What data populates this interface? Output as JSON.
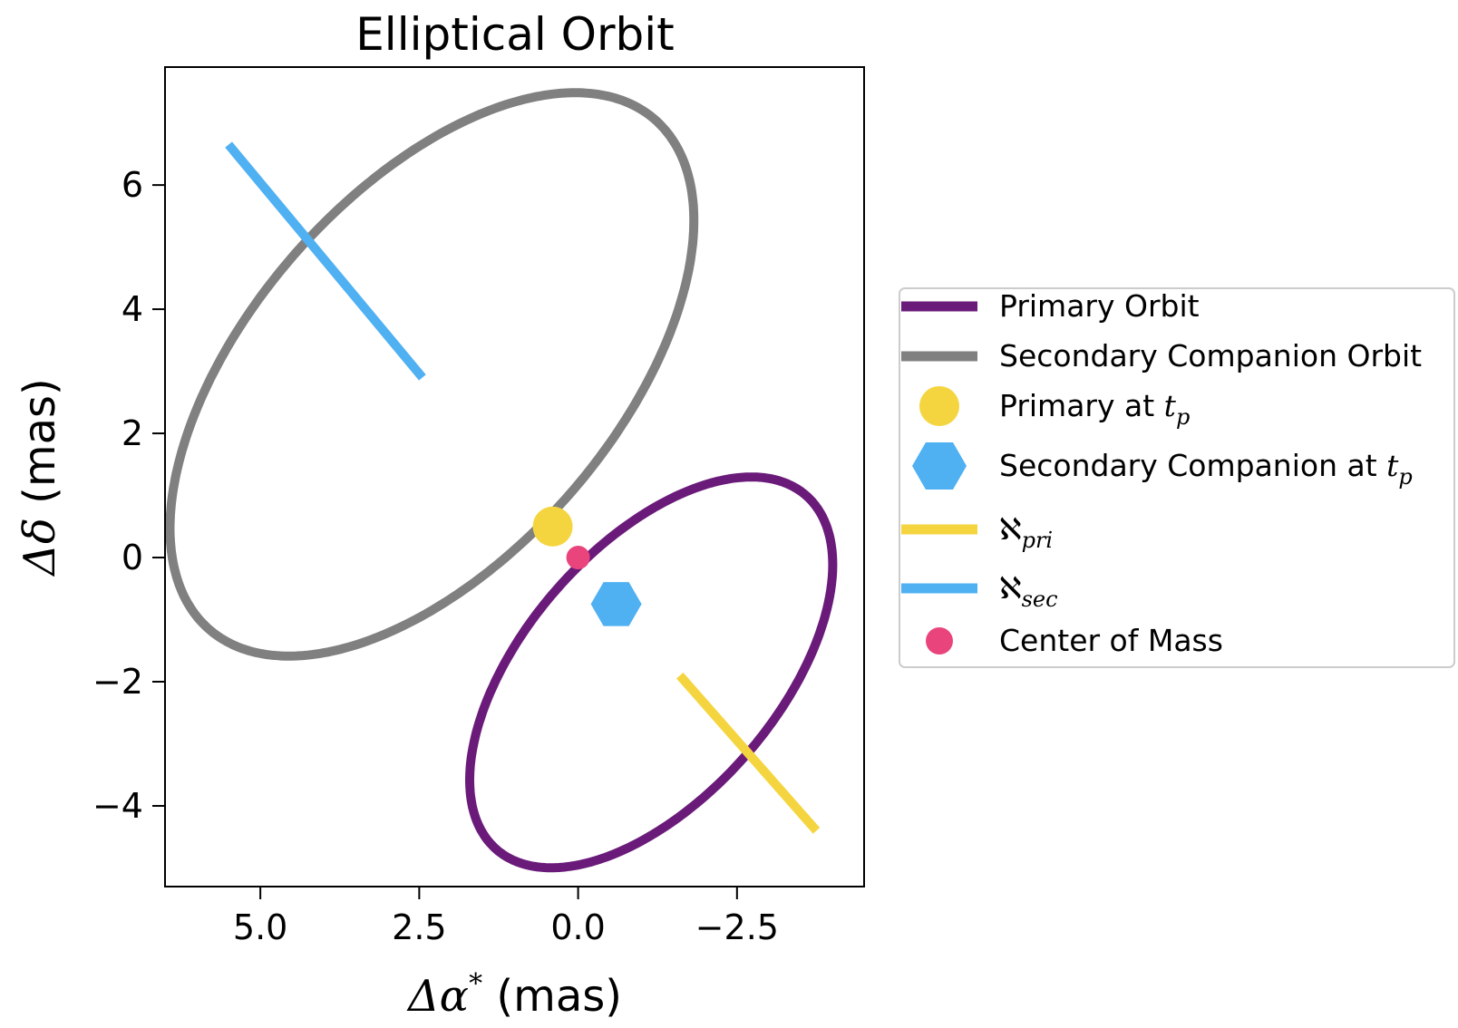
{
  "chart_data": {
    "type": "line",
    "title": "Elliptical Orbit",
    "xlabel_main": "Δα",
    "xlabel_sup": "*",
    "xlabel_unit": " (mas)",
    "ylabel_main": "Δδ",
    "ylabel_unit": " (mas)",
    "xlim": [
      6.5,
      -4.5
    ],
    "ylim": [
      -5.3,
      7.9
    ],
    "x_ticks": [
      5.0,
      2.5,
      0.0,
      -2.5
    ],
    "x_tick_labels": [
      "5.0",
      "2.5",
      "0.0",
      "−2.5"
    ],
    "y_ticks": [
      6,
      4,
      2,
      0,
      -2,
      -4
    ],
    "y_tick_labels": [
      "6",
      "4",
      "2",
      "0",
      "−2",
      "−4"
    ],
    "series": [
      {
        "name": "Primary Orbit",
        "color": "#6a1b7a",
        "ellipse": {
          "center": [
            -1.15,
            -1.85
          ],
          "semi_major": 3.75,
          "semi_minor": 2.0,
          "angle_deg": -50
        }
      },
      {
        "name": "Secondary Companion Orbit",
        "color": "#808080",
        "ellipse": {
          "center": [
            2.3,
            2.95
          ],
          "semi_major": 5.4,
          "semi_minor": 2.9,
          "angle_deg": -50
        }
      }
    ],
    "markers": [
      {
        "name": "Primary at t_p",
        "x": 0.4,
        "y": 0.5,
        "shape": "circle",
        "color": "#f5d53f"
      },
      {
        "name": "Secondary Companion at t_p",
        "x": -0.6,
        "y": -0.75,
        "shape": "hexagon",
        "color": "#4fb0f2"
      },
      {
        "name": "Center of Mass",
        "x": 0.0,
        "y": 0.0,
        "shape": "circle",
        "color": "#e9447c"
      }
    ],
    "segments": [
      {
        "name": "aleph_pri",
        "color": "#f5d53f",
        "x": [
          -1.6,
          -3.75
        ],
        "y": [
          -1.9,
          -4.4
        ]
      },
      {
        "name": "aleph_sec",
        "color": "#4fb0f2",
        "x": [
          5.5,
          2.45
        ],
        "y": [
          6.65,
          2.9
        ]
      }
    ],
    "legend": {
      "placement": "center-left outside right",
      "entries": [
        {
          "text": "Primary Orbit",
          "sub": "",
          "kind": "line",
          "color": "#6a1b7a"
        },
        {
          "text": "Secondary Companion Orbit",
          "sub": "",
          "kind": "line",
          "color": "#808080"
        },
        {
          "text": "Primary at ",
          "italic": "t",
          "sub": "p",
          "kind": "circle",
          "color": "#f5d53f"
        },
        {
          "text": "Secondary Companion at ",
          "italic": "t",
          "sub": "p",
          "kind": "hexagon",
          "color": "#4fb0f2"
        },
        {
          "text": "ℵ",
          "sub": "pri",
          "kind": "line",
          "color": "#f5d53f"
        },
        {
          "text": "ℵ",
          "sub": "sec",
          "kind": "line",
          "color": "#4fb0f2"
        },
        {
          "text": "Center of Mass",
          "sub": "",
          "kind": "circle",
          "color": "#e9447c"
        }
      ]
    }
  }
}
